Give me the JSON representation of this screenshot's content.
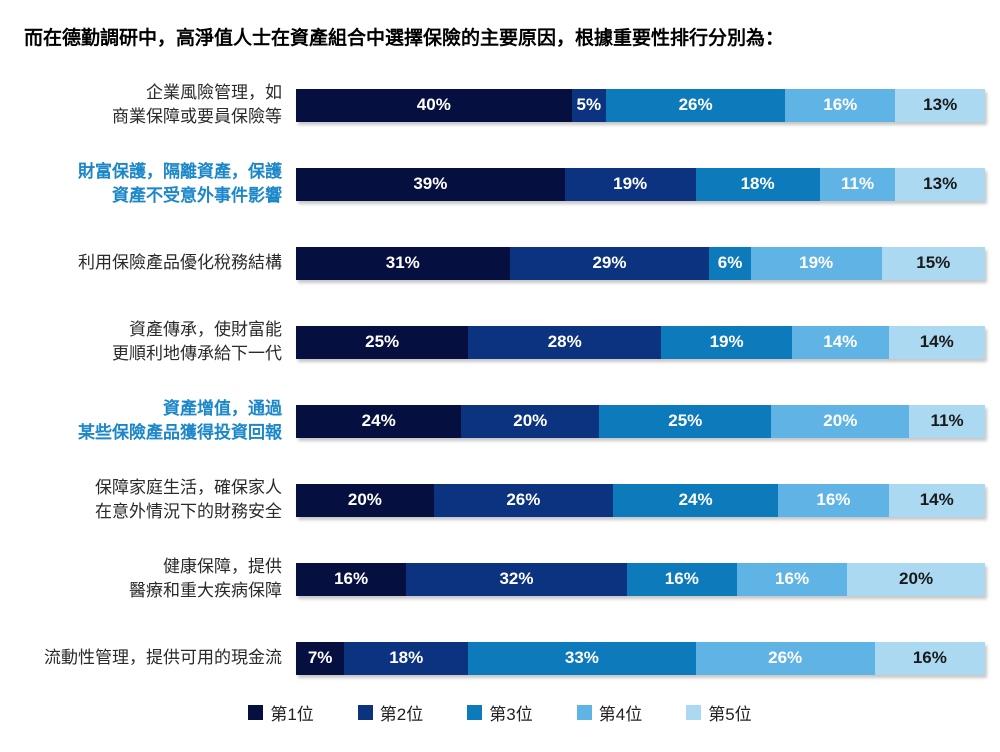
{
  "title": "而在德勤調研中，高淨值人士在資產組合中選擇保險的主要原因，根據重要性排行分別為：",
  "value_suffix": "%",
  "palette": [
    "#061040",
    "#0c3380",
    "#0d7abc",
    "#5fb4e5",
    "#abd9f2"
  ],
  "segment_text_colors": [
    "#ffffff",
    "#ffffff",
    "#ffffff",
    "#ffffff",
    "#1a1a1a"
  ],
  "emphasis_label_color": "#1b87c9",
  "rows": [
    {
      "label_lines": [
        "企業風險管理，如",
        "商業保障或要員保險等"
      ],
      "emphasized": false,
      "segments": [
        40,
        5,
        26,
        16,
        13
      ]
    },
    {
      "label_lines": [
        "財富保護，隔離資產，保護",
        "資產不受意外事件影響"
      ],
      "emphasized": true,
      "segments": [
        39,
        19,
        18,
        11,
        13
      ]
    },
    {
      "label_lines": [
        "利用保險產品優化稅務結構"
      ],
      "emphasized": false,
      "segments": [
        31,
        29,
        6,
        19,
        15
      ]
    },
    {
      "label_lines": [
        "資產傳承，使財富能",
        "更順利地傳承給下一代"
      ],
      "emphasized": false,
      "segments": [
        25,
        28,
        19,
        14,
        14
      ]
    },
    {
      "label_lines": [
        "資產增值，通過",
        "某些保險產品獲得投資回報"
      ],
      "emphasized": true,
      "segments": [
        24,
        20,
        25,
        20,
        11
      ]
    },
    {
      "label_lines": [
        "保障家庭生活，確保家人",
        "在意外情況下的財務安全"
      ],
      "emphasized": false,
      "segments": [
        20,
        26,
        24,
        16,
        14
      ]
    },
    {
      "label_lines": [
        "健康保障，提供",
        "醫療和重大疾病保障"
      ],
      "emphasized": false,
      "segments": [
        16,
        32,
        16,
        16,
        20
      ]
    },
    {
      "label_lines": [
        "流動性管理，提供可用的現金流"
      ],
      "emphasized": false,
      "segments": [
        7,
        18,
        33,
        26,
        16
      ]
    }
  ],
  "legend": {
    "items": [
      {
        "label": "第1位",
        "color": "#061040"
      },
      {
        "label": "第2位",
        "color": "#0c3380"
      },
      {
        "label": "第3位",
        "color": "#0d7abc"
      },
      {
        "label": "第4位",
        "color": "#5fb4e5"
      },
      {
        "label": "第5位",
        "color": "#abd9f2"
      }
    ]
  },
  "chart_data": {
    "type": "bar",
    "orientation": "horizontal-stacked",
    "title": "而在德勤調研中，高淨值人士在資產組合中選擇保險的主要原因，根據重要性排行分別為：",
    "categories": [
      "企業風險管理，如商業保障或要員保險等",
      "財富保護，隔離資產，保護資產不受意外事件影響",
      "利用保險產品優化稅務結構",
      "資產傳承，使財富能更順利地傳承給下一代",
      "資產增值，通過某些保險產品獲得投資回報",
      "保障家庭生活，確保家人在意外情況下的財務安全",
      "健康保障，提供醫療和重大疾病保障",
      "流動性管理，提供可用的現金流"
    ],
    "series": [
      {
        "name": "第1位",
        "color": "#061040",
        "values": [
          40,
          39,
          31,
          25,
          24,
          20,
          16,
          7
        ]
      },
      {
        "name": "第2位",
        "color": "#0c3380",
        "values": [
          5,
          19,
          29,
          28,
          20,
          26,
          32,
          18
        ]
      },
      {
        "name": "第3位",
        "color": "#0d7abc",
        "values": [
          26,
          18,
          6,
          19,
          25,
          24,
          16,
          33
        ]
      },
      {
        "name": "第4位",
        "color": "#5fb4e5",
        "values": [
          16,
          11,
          19,
          14,
          20,
          16,
          16,
          26
        ]
      },
      {
        "name": "第5位",
        "color": "#abd9f2",
        "values": [
          13,
          13,
          15,
          14,
          11,
          14,
          20,
          16
        ]
      }
    ],
    "xlabel": "",
    "ylabel": "",
    "xlim": [
      0,
      100
    ],
    "value_labels": "inside, percent",
    "grid": false,
    "legend_position": "bottom"
  }
}
